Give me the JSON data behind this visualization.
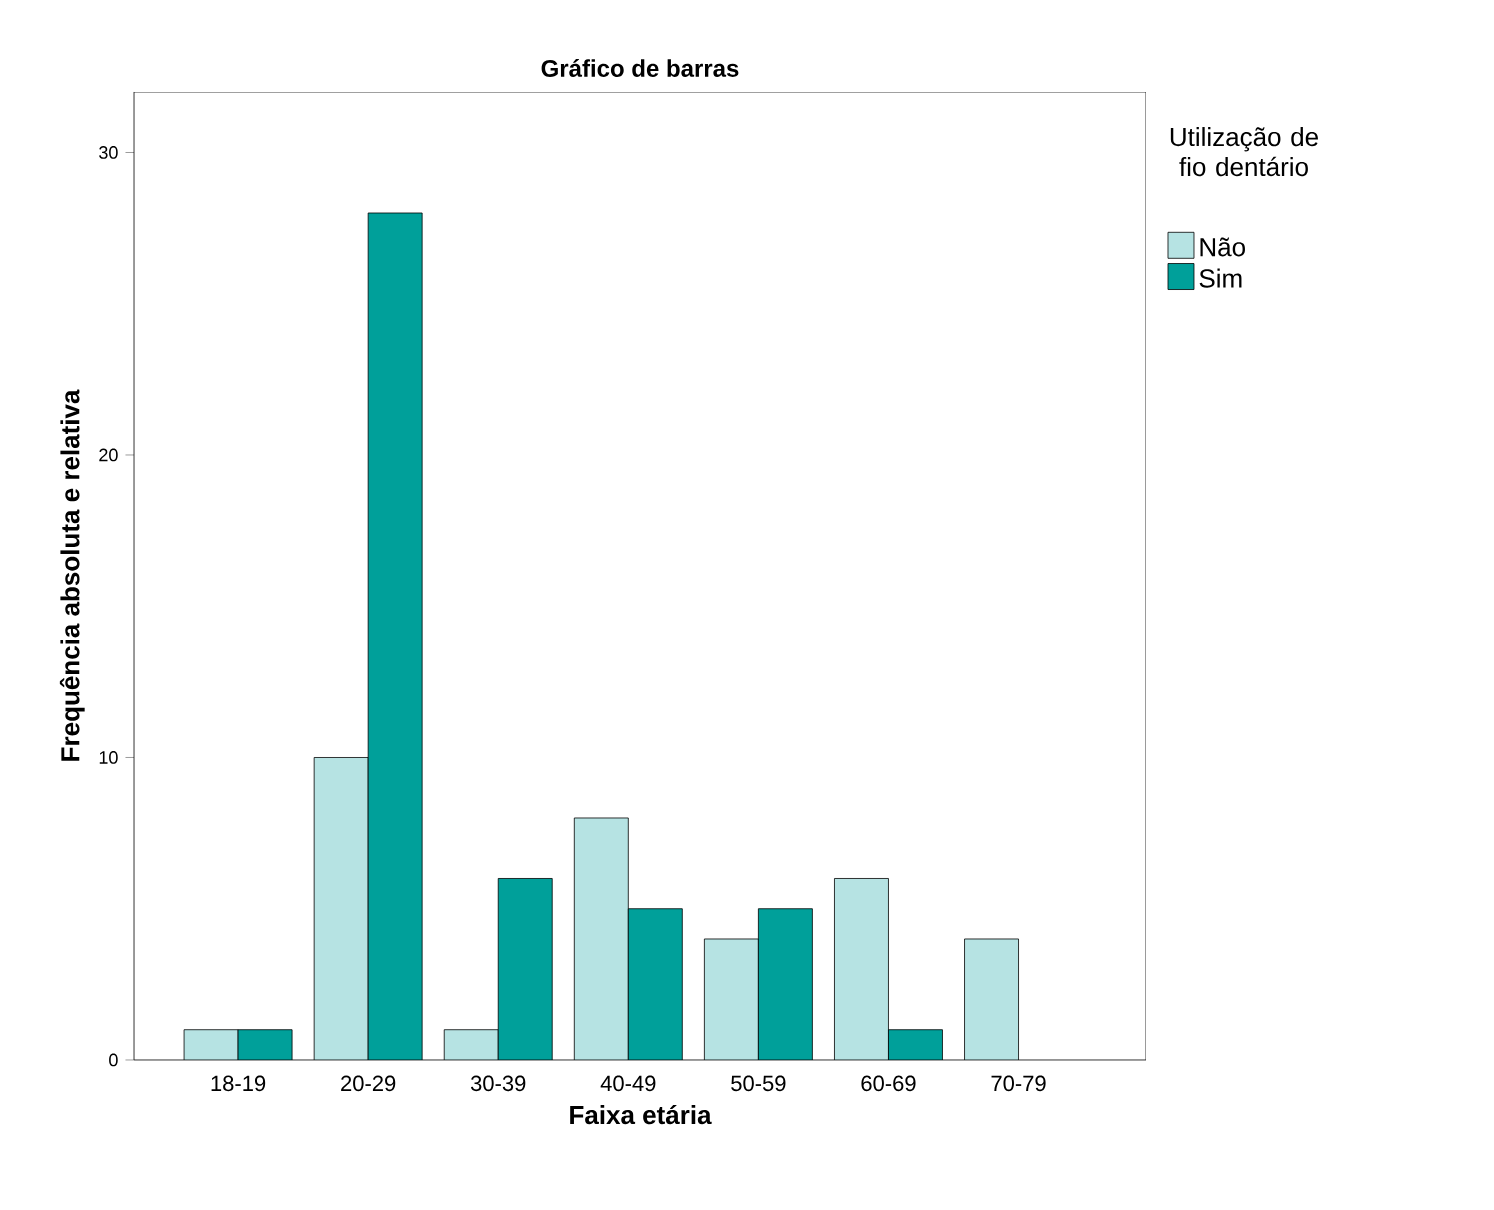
{
  "chart_data": {
    "type": "bar",
    "title": "Gráfico de barras",
    "xlabel": "Faixa etária",
    "ylabel": "Frequência absoluta e relativa",
    "legend_title": "Utilização de fio dentário",
    "categories": [
      "18-19",
      "20-29",
      "30-39",
      "40-49",
      "50-59",
      "60-69",
      "70-79"
    ],
    "series": [
      {
        "name": "Não",
        "color": "#b6e3e3",
        "values": [
          1,
          10,
          1,
          8,
          4,
          6,
          4
        ]
      },
      {
        "name": "Sim",
        "color": "#00a09a",
        "values": [
          1,
          28,
          6,
          5,
          5,
          1,
          null
        ]
      }
    ],
    "ylim": [
      0,
      32
    ],
    "yticks": [
      0,
      10,
      20,
      30
    ],
    "grid": false,
    "legend": "right"
  }
}
